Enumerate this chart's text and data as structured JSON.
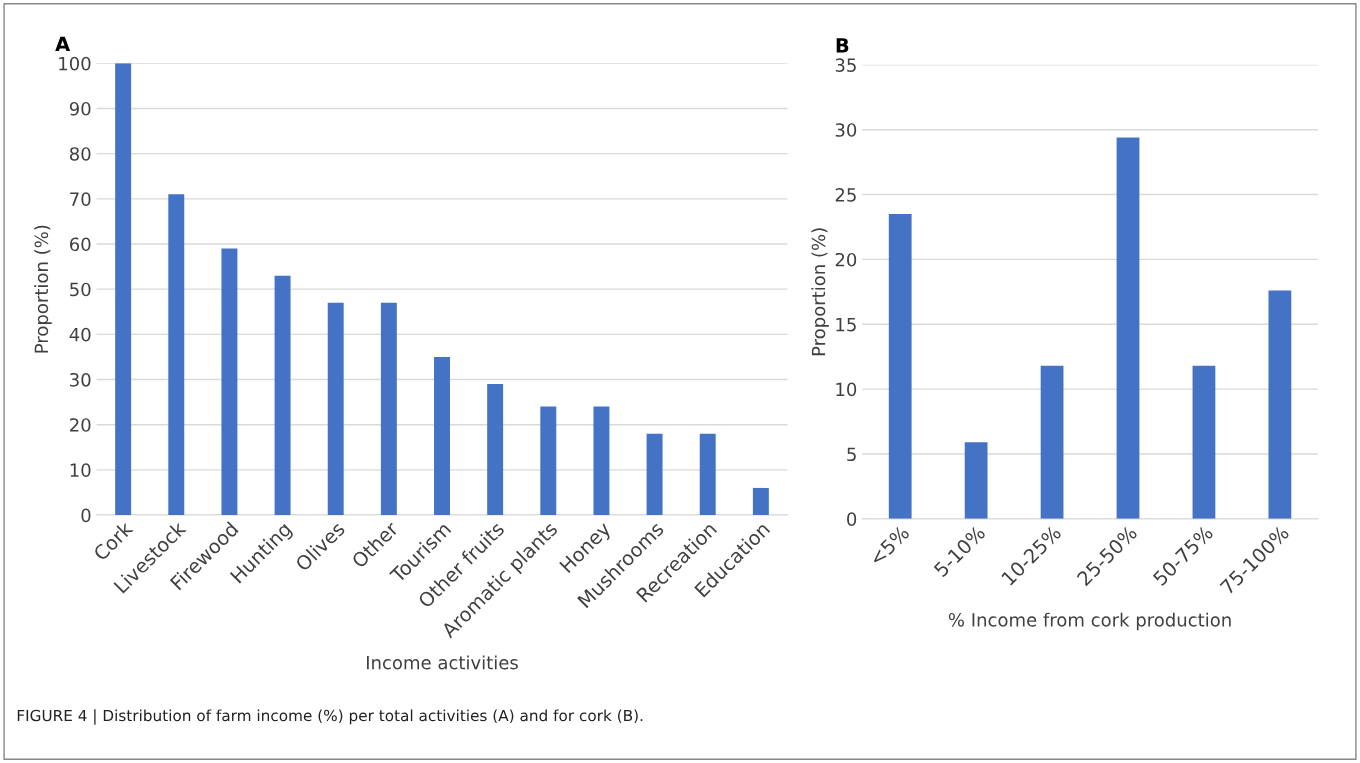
{
  "chart_data": [
    {
      "type": "bar",
      "title": "A",
      "xlabel": "Income activities",
      "ylabel": "Proportion (%)",
      "categories": [
        "Cork",
        "Livestock",
        "Firewood",
        "Hunting",
        "Olives",
        "Other",
        "Tourism",
        "Other fruits",
        "Aromatic plants",
        "Honey",
        "Mushrooms",
        "Recreation",
        "Education"
      ],
      "values": [
        100,
        71,
        59,
        53,
        47,
        47,
        35,
        29,
        24,
        24,
        18,
        18,
        6
      ],
      "color": "#4472c4",
      "ylim": [
        0,
        100
      ],
      "yticks": [
        0,
        10,
        20,
        30,
        40,
        50,
        60,
        70,
        80,
        90,
        100
      ],
      "grid": "y",
      "legend": false,
      "annotations": [
        "FIGURE 4 | Distribution of farm income (%) per total activities (A) and for cork (B)."
      ]
    },
    {
      "type": "bar",
      "title": "B",
      "xlabel": "% Income from cork production",
      "ylabel": "Proportion (%)",
      "categories": [
        "<5%",
        "5-10%",
        "10-25%",
        "25-50%",
        "50-75%",
        "75-100%"
      ],
      "values": [
        23.5,
        5.9,
        11.8,
        29.4,
        11.8,
        17.6
      ],
      "color": "#4472c4",
      "ylim": [
        0,
        35
      ],
      "yticks": [
        0,
        5,
        10,
        15,
        20,
        25,
        30,
        35
      ],
      "grid": "y",
      "legend": false
    }
  ]
}
